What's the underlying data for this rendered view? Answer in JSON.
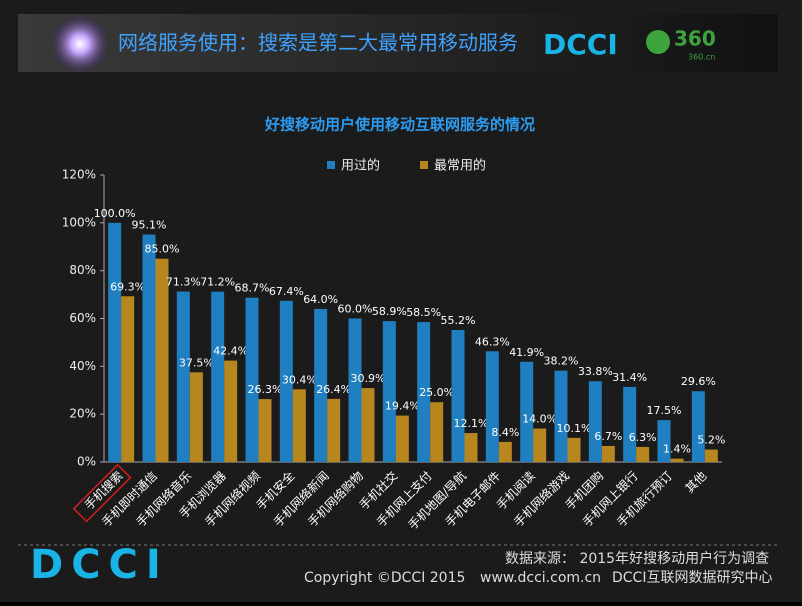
{
  "header": {
    "title": "网络服务使用：搜索是第二大最常用移动服务",
    "logo": "DCCI",
    "brand": "360",
    "brand_url": "360.cn"
  },
  "chart_data": {
    "type": "bar",
    "title": "好搜移动用户使用移动互联网服务的情况",
    "categories": [
      "手机搜索",
      "手机即时通信",
      "手机网络音乐",
      "手机浏览器",
      "手机网络视频",
      "手机安全",
      "手机网络新闻",
      "手机网络购物",
      "手机社交",
      "手机网上支付",
      "手机地图/导航",
      "手机电子邮件",
      "手机阅读",
      "手机网络游戏",
      "手机团购",
      "手机网上银行",
      "手机旅行预订",
      "其他"
    ],
    "series": [
      {
        "name": "用过的",
        "color": "#1f7fc0",
        "values": [
          100.0,
          95.1,
          71.3,
          71.2,
          68.7,
          67.4,
          64.0,
          60.0,
          58.9,
          58.5,
          55.2,
          46.3,
          41.9,
          38.2,
          33.8,
          31.4,
          17.5,
          29.6
        ],
        "value_labels": [
          "100.0%",
          "95.1%",
          "71.3%",
          "71.2%",
          "68.7%",
          "67.4%",
          "64.0%",
          "60.0%",
          "58.9%",
          "58.5%",
          "55.2%",
          "46.3%",
          "41.9%",
          "38.2%",
          "33.8%",
          "31.4%",
          "17.5%",
          "29.6%"
        ]
      },
      {
        "name": "最常用的",
        "color": "#b8861e",
        "values": [
          69.3,
          85.0,
          37.5,
          42.4,
          26.3,
          30.4,
          26.4,
          30.9,
          19.4,
          25.0,
          12.1,
          8.4,
          14.0,
          10.1,
          6.7,
          6.3,
          1.4,
          5.2
        ],
        "value_labels": [
          "69.3%",
          "85.0%",
          "37.5%",
          "42.4%",
          "26.3%",
          "30.4%",
          "26.4%",
          "30.9%",
          "19.4%",
          "25.0%",
          "12.1%",
          "8.4%",
          "14.0%",
          "10.1%",
          "6.7%",
          "6.3%",
          "1.4%",
          "5.2%"
        ]
      }
    ],
    "ylim": [
      0,
      120
    ],
    "yticks": [
      {
        "value": 0,
        "label": "0%"
      },
      {
        "value": 20,
        "label": "20%"
      },
      {
        "value": 40,
        "label": "40%"
      },
      {
        "value": 60,
        "label": "60%"
      },
      {
        "value": 80,
        "label": "80%"
      },
      {
        "value": 100,
        "label": "100%"
      },
      {
        "value": 120,
        "label": "120%"
      }
    ],
    "legend": "top"
  },
  "footer": {
    "source": "数据来源： 2015年好搜移动用户行为调查",
    "copyright": "Copyright ©DCCI 2015",
    "website": "www.dcci.com.cn",
    "org": "DCCI互联网数据研究中心",
    "logo": "DCCI"
  }
}
